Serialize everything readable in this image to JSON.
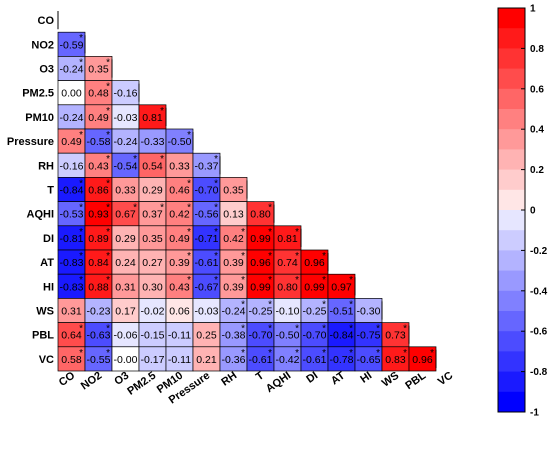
{
  "chart_data": {
    "type": "heatmap",
    "variables": [
      "CO",
      "NO2",
      "O3",
      "PM2.5",
      "PM10",
      "Pressure",
      "RH",
      "T",
      "AQHI",
      "DI",
      "AT",
      "HI",
      "WS",
      "PBL",
      "VC"
    ],
    "matrix": [
      [],
      [
        "-0.59"
      ],
      [
        "-0.24",
        "0.35"
      ],
      [
        "0.00",
        "0.48",
        "-0.16"
      ],
      [
        "-0.24",
        "0.49",
        "-0.03",
        "0.81"
      ],
      [
        "0.49",
        "-0.58",
        "-0.24",
        "-0.33",
        "-0.50"
      ],
      [
        "-0.16",
        "0.43",
        "-0.54",
        "0.54",
        "0.33",
        "-0.37"
      ],
      [
        "-0.84",
        "0.86",
        "0.33",
        "0.29",
        "0.46",
        "-0.70",
        "0.35"
      ],
      [
        "-0.53",
        "0.93",
        "0.67",
        "0.37",
        "0.42",
        "-0.56",
        "0.13",
        "0.80"
      ],
      [
        "-0.81",
        "0.89",
        "0.29",
        "0.35",
        "0.49",
        "-0.71",
        "0.42",
        "0.99",
        "0.81"
      ],
      [
        "-0.83",
        "0.84",
        "0.24",
        "0.27",
        "0.39",
        "-0.61",
        "0.39",
        "0.96",
        "0.74",
        "0.96"
      ],
      [
        "-0.83",
        "0.88",
        "0.31",
        "0.30",
        "0.43",
        "-0.67",
        "0.39",
        "0.99",
        "0.80",
        "0.99",
        "0.97"
      ],
      [
        "0.31",
        "-0.23",
        "0.17",
        "-0.02",
        "0.06",
        "-0.03",
        "-0.24",
        "-0.25",
        "-0.10",
        "-0.25",
        "-0.51",
        "-0.30"
      ],
      [
        "0.64",
        "-0.63",
        "-0.06",
        "-0.15",
        "-0.11",
        "0.25",
        "-0.38",
        "-0.70",
        "-0.50",
        "-0.70",
        "-0.84",
        "-0.75",
        "0.73"
      ],
      [
        "0.58",
        "-0.55",
        "-0.00",
        "-0.17",
        "-0.11",
        "0.21",
        "-0.36",
        "-0.61",
        "-0.42",
        "-0.61",
        "-0.78",
        "-0.65",
        "0.83",
        "0.96"
      ]
    ],
    "significant": [
      [],
      [
        1
      ],
      [
        1,
        1
      ],
      [
        0,
        1,
        0
      ],
      [
        0,
        1,
        0,
        1
      ],
      [
        1,
        1,
        0,
        0,
        1
      ],
      [
        0,
        1,
        1,
        1,
        0,
        1
      ],
      [
        1,
        1,
        0,
        0,
        1,
        1,
        0
      ],
      [
        1,
        1,
        1,
        1,
        1,
        1,
        0,
        1
      ],
      [
        1,
        1,
        0,
        0,
        1,
        1,
        1,
        1,
        1
      ],
      [
        1,
        1,
        0,
        0,
        1,
        1,
        1,
        1,
        1,
        1
      ],
      [
        1,
        1,
        0,
        0,
        1,
        1,
        1,
        1,
        1,
        1,
        1
      ],
      [
        0,
        0,
        0,
        0,
        0,
        0,
        1,
        1,
        0,
        1,
        1,
        0
      ],
      [
        1,
        1,
        0,
        0,
        0,
        0,
        1,
        1,
        1,
        1,
        1,
        1,
        1
      ],
      [
        1,
        1,
        0,
        0,
        0,
        0,
        1,
        1,
        1,
        1,
        1,
        1,
        1,
        1
      ]
    ],
    "star_symbol": "*",
    "colorbar": {
      "ticks": [
        "1",
        "0.8",
        "0.6",
        "0.4",
        "0.2",
        "0",
        "-0.2",
        "-0.4",
        "-0.6",
        "-0.8",
        "-1"
      ],
      "range": [
        -1,
        1
      ],
      "negative_color": "#0000ff",
      "neutral_color": "#ffffff",
      "positive_color": "#ff0000"
    }
  }
}
